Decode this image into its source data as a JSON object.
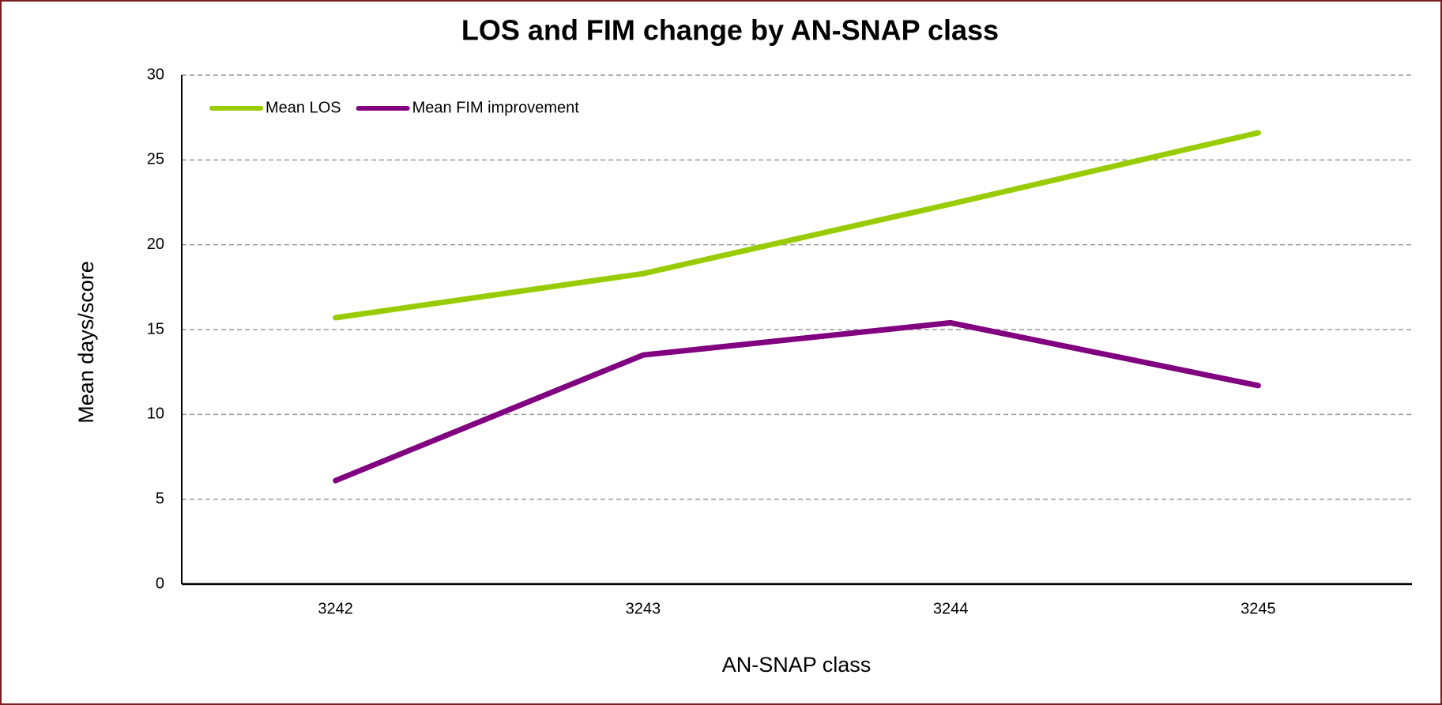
{
  "chart_data": {
    "type": "line",
    "title": "LOS and FIM change by AN-SNAP class",
    "x_label": "AN-SNAP class",
    "y_label": "Mean days/score",
    "categories": [
      "3242",
      "3243",
      "3244",
      "3245"
    ],
    "series": [
      {
        "name": "Mean LOS",
        "color": "#99cc00",
        "values": [
          15.7,
          18.3,
          22.4,
          26.6
        ]
      },
      {
        "name": "Mean FIM improvement",
        "color": "#800080",
        "values": [
          6.1,
          13.5,
          15.4,
          11.7
        ]
      }
    ],
    "ylim": [
      0,
      30
    ],
    "yticks": [
      0,
      5,
      10,
      15,
      20,
      25,
      30
    ],
    "grid": true,
    "legend": "upper left"
  }
}
